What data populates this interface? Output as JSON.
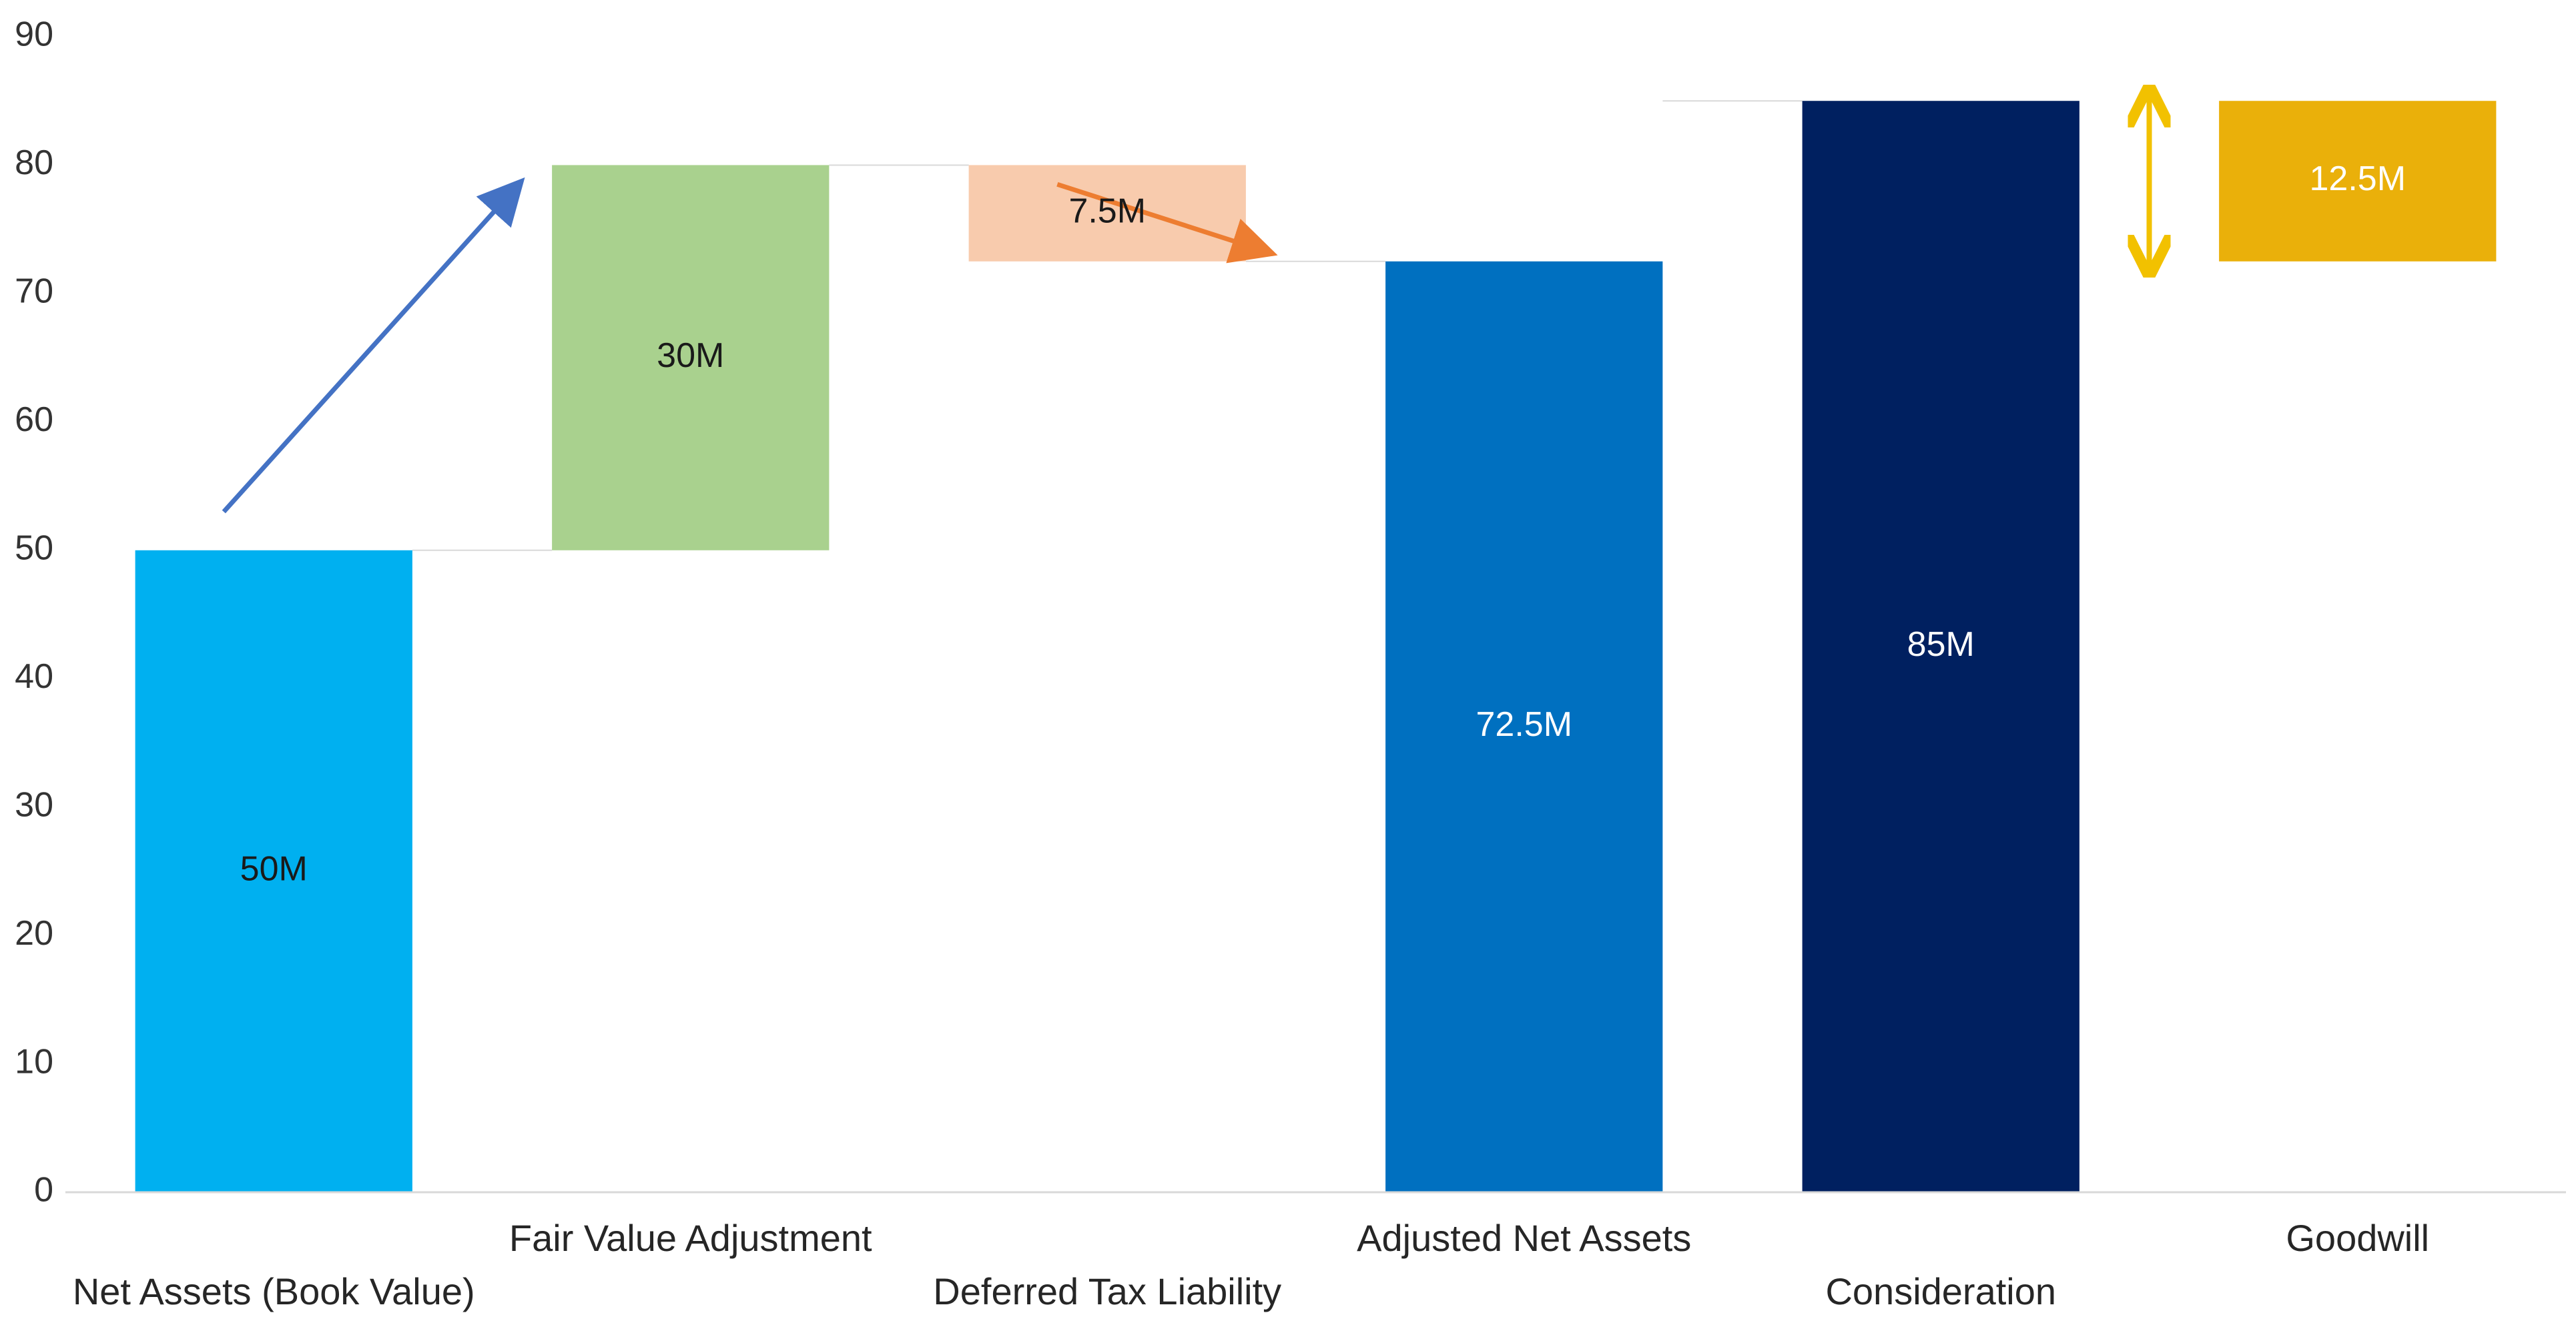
{
  "chart_data": {
    "type": "bar",
    "subtype": "waterfall",
    "title": "",
    "xlabel": "",
    "ylabel": "",
    "ylim": [
      0,
      90
    ],
    "yticks": [
      0,
      10,
      20,
      30,
      40,
      50,
      60,
      70,
      80,
      90
    ],
    "grid": false,
    "legend": "none",
    "categories": [
      "Net Assets (Book Value)",
      "Fair Value Adjustment",
      "Deferred Tax Liability",
      "Adjusted Net Assets",
      "Consideration",
      "Goodwill"
    ],
    "bars": [
      {
        "category": "Net Assets (Book Value)",
        "base": 0,
        "top": 50,
        "label": "50M",
        "color": "#00B0F0",
        "label_color": "#1a1a1a"
      },
      {
        "category": "Fair Value Adjustment",
        "base": 50,
        "top": 80,
        "label": "30M",
        "color": "#A9D18E",
        "label_color": "#1a1a1a"
      },
      {
        "category": "Deferred Tax Liability",
        "base": 72.5,
        "top": 80,
        "label": "7.5M",
        "color": "#F8CBAD",
        "label_color": "#1a1a1a"
      },
      {
        "category": "Adjusted Net Assets",
        "base": 0,
        "top": 72.5,
        "label": "72.5M",
        "color": "#0070C0",
        "label_color": "#ffffff"
      },
      {
        "category": "Consideration",
        "base": 0,
        "top": 85,
        "label": "85M",
        "color": "#002060",
        "label_color": "#ffffff"
      },
      {
        "category": "Goodwill",
        "base": 72.5,
        "top": 85,
        "label": "12.5M",
        "color": "#EAB00A",
        "label_color": "#ffffff"
      }
    ],
    "connectors": [
      50,
      80,
      72.5,
      85
    ],
    "annotations": [
      {
        "type": "arrow",
        "color": "#4472C4",
        "from": {
          "category": 0.5,
          "value": 53
        },
        "to": {
          "category": 1,
          "value": 78.5
        }
      },
      {
        "type": "arrow",
        "color": "#ED7D31",
        "from": {
          "category": 2.5,
          "value": 78.5
        },
        "to": {
          "category": 2.8,
          "value": 73.2
        }
      },
      {
        "type": "double-arrow",
        "color": "#F2C100",
        "at": {
          "category": 4.5
        },
        "from_value": 85,
        "to_value": 72.5
      }
    ]
  }
}
